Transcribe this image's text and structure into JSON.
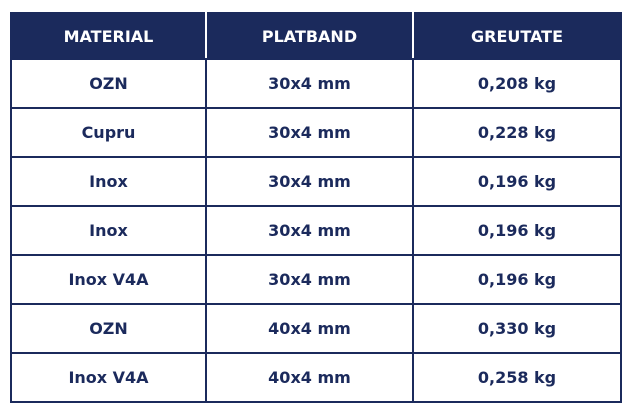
{
  "table": {
    "header": [
      "MATERIAL",
      "PLATBAND",
      "GREUTATE"
    ],
    "rows": [
      [
        "OZN",
        "30x4 mm",
        "0,208 kg"
      ],
      [
        "Cupru",
        "30x4 mm",
        "0,228 kg"
      ],
      [
        "Inox",
        "30x4 mm",
        "0,196 kg"
      ],
      [
        "Inox",
        "30x4 mm",
        "0,196 kg"
      ],
      [
        "Inox V4A",
        "30x4 mm",
        "0,196 kg"
      ],
      [
        "OZN",
        "40x4 mm",
        "0,330 kg"
      ],
      [
        "Inox V4A",
        "40x4 mm",
        "0,258 kg"
      ]
    ]
  }
}
